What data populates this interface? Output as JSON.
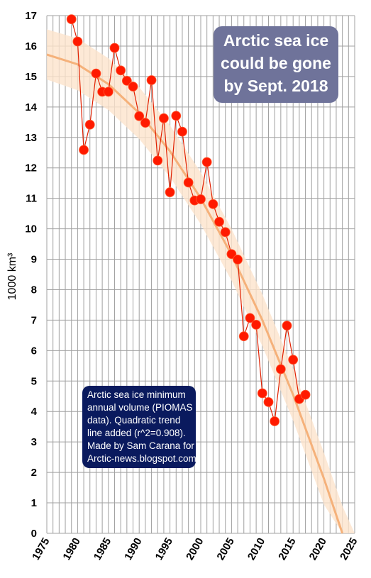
{
  "annotations": {
    "headline": [
      "Arctic sea ice",
      "could be gone",
      "by Sept. 2018"
    ],
    "note": [
      "Arctic sea ice minimum",
      "annual volume (PIOMAS",
      "data). Quadratic trend",
      "line added (r^2=0.908).",
      "Made by Sam Carana for",
      "Arctic-news.blogspot.com"
    ]
  },
  "colors": {
    "points": "#ff1a00",
    "point_line": "#e02000",
    "trend": "#f5b17a",
    "band": "#fde3cc",
    "headline_bg": "#6f739a",
    "note_bg": "#0a1a5e"
  },
  "chart_data": {
    "type": "scatter",
    "title": "",
    "xlabel": "",
    "ylabel": "1000 km³",
    "xlim": [
      1975,
      2025
    ],
    "ylim": [
      0,
      17
    ],
    "x_ticks": [
      "1975",
      "1980",
      "1985",
      "1990",
      "1995",
      "2000",
      "2005",
      "2010",
      "2015",
      "2020",
      "2025"
    ],
    "y_ticks": [
      "0",
      "1",
      "2",
      "3",
      "4",
      "5",
      "6",
      "7",
      "8",
      "9",
      "10",
      "11",
      "12",
      "13",
      "14",
      "15",
      "16",
      "17"
    ],
    "grid": true,
    "series": [
      {
        "x": [
          1979,
          1980,
          1981,
          1982,
          1983,
          1984,
          1985,
          1986,
          1987,
          1988,
          1989,
          1990,
          1991,
          1992,
          1993,
          1994,
          1995,
          1996,
          1997,
          1998,
          1999,
          2000,
          2001,
          2002,
          2003,
          2004,
          2005,
          2006,
          2007,
          2008,
          2009,
          2010,
          2011,
          2012,
          2013,
          2014,
          2015,
          2016,
          2017,
          2018
        ],
        "y": [
          16.88,
          16.15,
          12.59,
          13.42,
          15.1,
          14.5,
          14.5,
          15.94,
          15.2,
          14.86,
          14.67,
          13.7,
          13.48,
          14.88,
          12.24,
          13.63,
          11.2,
          13.71,
          13.19,
          11.52,
          10.93,
          10.97,
          12.19,
          10.81,
          10.23,
          9.89,
          9.17,
          8.99,
          6.47,
          7.07,
          6.85,
          4.6,
          4.31,
          3.68,
          5.39,
          6.82,
          5.7,
          4.41,
          4.55,
          null
        ]
      },
      {
        "type": "line",
        "x": [
          1975,
          1980,
          1985,
          1990,
          1995,
          2000,
          2005,
          2010,
          2015,
          2020,
          2023
        ],
        "y": [
          15.72,
          15.4,
          14.75,
          13.8,
          12.55,
          11.0,
          9.15,
          7.0,
          4.55,
          1.8,
          0.0
        ]
      }
    ],
    "band": {
      "x": [
        1975,
        1980,
        1985,
        1990,
        1995,
        2000,
        2005,
        2010,
        2015,
        2020,
        2023,
        2025
      ],
      "upper": [
        16.55,
        16.25,
        15.6,
        14.65,
        13.4,
        11.85,
        10.0,
        7.85,
        5.4,
        2.65,
        0.9,
        0.0
      ],
      "lower": [
        14.9,
        14.55,
        13.9,
        12.95,
        11.7,
        10.15,
        8.3,
        6.15,
        3.7,
        0.95,
        0.0,
        0.0
      ]
    }
  }
}
